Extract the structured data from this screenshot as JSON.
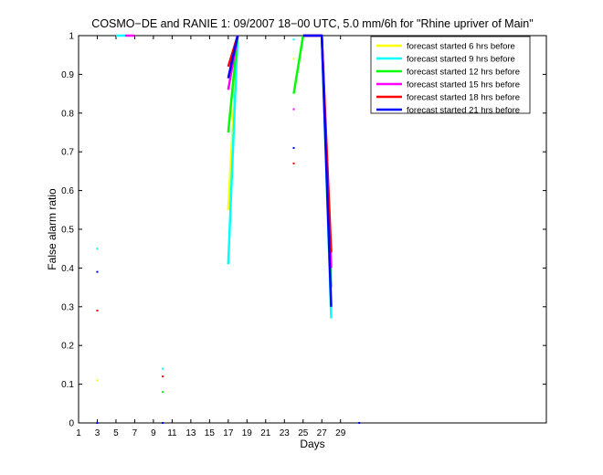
{
  "chart_data": {
    "type": "line",
    "title": "COSMO−DE and RANIE 1: 09/2007 18−00 UTC, 5.0 mm/6h for \"Rhine upriver of Main\"",
    "xlabel": "Days",
    "ylabel": "False alarm ratio",
    "xlim": [
      1,
      51
    ],
    "ylim": [
      0,
      1
    ],
    "xticks": [
      1,
      3,
      5,
      7,
      9,
      11,
      13,
      15,
      17,
      19,
      21,
      23,
      25,
      27,
      29
    ],
    "yticks": [
      0,
      0.1,
      0.2,
      0.3,
      0.4,
      0.5,
      0.6,
      0.7,
      0.8,
      0.9,
      1
    ],
    "ytick_labels": [
      "0",
      "0.1",
      "0.2",
      "0.3",
      "0.4",
      "0.5",
      "0.6",
      "0.7",
      "0.8",
      "0.9",
      "1"
    ],
    "legend_position": "top-right",
    "series": [
      {
        "name": "forecast started 6 hrs before",
        "color": "#ffff00",
        "segments": [
          [
            [
              3,
              0.11
            ]
          ],
          [
            [
              17,
              0.55
            ],
            [
              18,
              1.0
            ]
          ],
          [
            [
              24,
              0.94
            ]
          ],
          [
            [
              25,
              1.0
            ],
            [
              27,
              1.0
            ],
            [
              28,
              0.31
            ]
          ]
        ]
      },
      {
        "name": "forecast started 9 hrs before",
        "color": "#00ffff",
        "segments": [
          [
            [
              3,
              0.45
            ]
          ],
          [
            [
              5,
              1.0
            ],
            [
              6,
              1.0
            ]
          ],
          [
            [
              10,
              0.14
            ]
          ],
          [
            [
              17,
              0.41
            ],
            [
              18,
              1.0
            ]
          ],
          [
            [
              24,
              0.99
            ]
          ],
          [
            [
              25,
              1.0
            ],
            [
              27,
              1.0
            ],
            [
              28,
              0.27
            ]
          ]
        ]
      },
      {
        "name": "forecast started 12 hrs before",
        "color": "#00ff00",
        "segments": [
          [
            [
              10,
              0.08
            ]
          ],
          [
            [
              17,
              0.75
            ],
            [
              18,
              1.0
            ]
          ],
          [
            [
              24,
              0.85
            ],
            [
              25,
              1.0
            ],
            [
              27,
              1.0
            ],
            [
              28,
              0.35
            ]
          ]
        ]
      },
      {
        "name": "forecast started 15 hrs before",
        "color": "#ff00ff",
        "segments": [
          [
            [
              6,
              1.0
            ],
            [
              7,
              1.0
            ]
          ],
          [
            [
              17,
              0.86
            ],
            [
              18,
              1.0
            ]
          ],
          [
            [
              24,
              0.81
            ]
          ],
          [
            [
              25,
              1.0
            ],
            [
              27,
              1.0
            ],
            [
              28,
              0.4
            ]
          ]
        ]
      },
      {
        "name": "forecast started 18 hrs before",
        "color": "#ff0000",
        "segments": [
          [
            [
              3,
              0.29
            ]
          ],
          [
            [
              10,
              0.12
            ]
          ],
          [
            [
              17,
              0.92
            ],
            [
              18,
              1.0
            ]
          ],
          [
            [
              24,
              0.67
            ]
          ],
          [
            [
              25,
              1.0
            ],
            [
              27,
              1.0
            ],
            [
              28,
              0.44
            ]
          ]
        ]
      },
      {
        "name": "forecast started 21 hrs before",
        "color": "#0000ff",
        "segments": [
          [
            [
              3,
              0.39
            ]
          ],
          [
            [
              3,
              0.0
            ]
          ],
          [
            [
              10,
              0.0
            ]
          ],
          [
            [
              17,
              0.89
            ],
            [
              18,
              1.0
            ]
          ],
          [
            [
              24,
              0.71
            ]
          ],
          [
            [
              25,
              1.0
            ],
            [
              27,
              1.0
            ],
            [
              28,
              0.3
            ]
          ],
          [
            [
              31,
              0.0
            ]
          ]
        ]
      }
    ]
  }
}
